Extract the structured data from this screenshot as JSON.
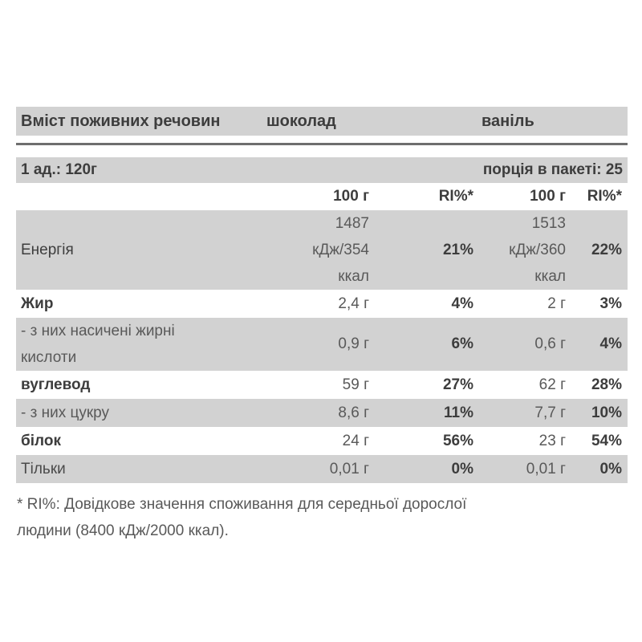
{
  "header": {
    "label": "Вміст поживних речовин",
    "chocolate": "шоколад",
    "vanilla": "ваніль"
  },
  "serving": {
    "unit": "1 ад.: 120г",
    "portions": "порція в пакеті: 25"
  },
  "columns": {
    "c1": "100 г",
    "c2": "RI%*",
    "c3": "100 г",
    "c4": "RI%*"
  },
  "rows": [
    {
      "label": "Енергія",
      "c1": "1487\nкДж/354\nккал",
      "c2": "21%",
      "c3": "1513\nкДж/360\nккал",
      "c4": "22%"
    },
    {
      "label": "Жир",
      "c1": "2,4 г",
      "c2": "4%",
      "c3": "2 г",
      "c4": "3%"
    },
    {
      "label": "- з них насичені жирні кислоти",
      "c1": "0,9 г",
      "c2": "6%",
      "c3": "0,6 г",
      "c4": "4%"
    },
    {
      "label": "вуглевод",
      "c1": "59 г",
      "c2": "27%",
      "c3": "62 г",
      "c4": "28%"
    },
    {
      "label": "- з них цукру",
      "c1": "8,6 г",
      "c2": "11%",
      "c3": "7,7 г",
      "c4": "10%"
    },
    {
      "label": "білок",
      "c1": "24 г",
      "c2": "56%",
      "c3": "23 г",
      "c4": "54%"
    },
    {
      "label": "Тільки",
      "c1": "0,01 г",
      "c2": "0%",
      "c3": "0,01 г",
      "c4": "0%"
    }
  ],
  "footnote": "* RI%: Довідкове значення споживання для середньої дорослої\nлюдини (8400 кДж/2000 ккал).",
  "colors": {
    "band": "#d2d2d2",
    "text_dark": "#3d3d3d",
    "text_muted": "#595959",
    "rule": "#6e6e6e"
  }
}
